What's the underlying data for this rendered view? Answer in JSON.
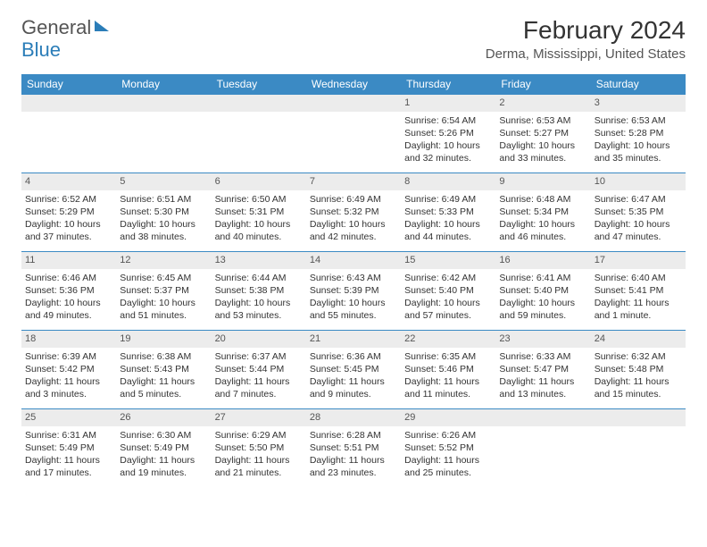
{
  "logo": {
    "part1": "General",
    "part2": "Blue"
  },
  "title": "February 2024",
  "location": "Derma, Mississippi, United States",
  "dow": [
    "Sunday",
    "Monday",
    "Tuesday",
    "Wednesday",
    "Thursday",
    "Friday",
    "Saturday"
  ],
  "colors": {
    "brand_blue": "#3b8ac4",
    "logo_blue": "#2b7db8",
    "text": "#333333",
    "daynum_bg": "#ececec",
    "background": "#ffffff"
  },
  "layout": {
    "type": "calendar",
    "columns": 7,
    "rows": 5,
    "first_weekday_index": 4
  },
  "days": [
    {
      "n": "1",
      "sunrise": "6:54 AM",
      "sunset": "5:26 PM",
      "daylight": "10 hours and 32 minutes."
    },
    {
      "n": "2",
      "sunrise": "6:53 AM",
      "sunset": "5:27 PM",
      "daylight": "10 hours and 33 minutes."
    },
    {
      "n": "3",
      "sunrise": "6:53 AM",
      "sunset": "5:28 PM",
      "daylight": "10 hours and 35 minutes."
    },
    {
      "n": "4",
      "sunrise": "6:52 AM",
      "sunset": "5:29 PM",
      "daylight": "10 hours and 37 minutes."
    },
    {
      "n": "5",
      "sunrise": "6:51 AM",
      "sunset": "5:30 PM",
      "daylight": "10 hours and 38 minutes."
    },
    {
      "n": "6",
      "sunrise": "6:50 AM",
      "sunset": "5:31 PM",
      "daylight": "10 hours and 40 minutes."
    },
    {
      "n": "7",
      "sunrise": "6:49 AM",
      "sunset": "5:32 PM",
      "daylight": "10 hours and 42 minutes."
    },
    {
      "n": "8",
      "sunrise": "6:49 AM",
      "sunset": "5:33 PM",
      "daylight": "10 hours and 44 minutes."
    },
    {
      "n": "9",
      "sunrise": "6:48 AM",
      "sunset": "5:34 PM",
      "daylight": "10 hours and 46 minutes."
    },
    {
      "n": "10",
      "sunrise": "6:47 AM",
      "sunset": "5:35 PM",
      "daylight": "10 hours and 47 minutes."
    },
    {
      "n": "11",
      "sunrise": "6:46 AM",
      "sunset": "5:36 PM",
      "daylight": "10 hours and 49 minutes."
    },
    {
      "n": "12",
      "sunrise": "6:45 AM",
      "sunset": "5:37 PM",
      "daylight": "10 hours and 51 minutes."
    },
    {
      "n": "13",
      "sunrise": "6:44 AM",
      "sunset": "5:38 PM",
      "daylight": "10 hours and 53 minutes."
    },
    {
      "n": "14",
      "sunrise": "6:43 AM",
      "sunset": "5:39 PM",
      "daylight": "10 hours and 55 minutes."
    },
    {
      "n": "15",
      "sunrise": "6:42 AM",
      "sunset": "5:40 PM",
      "daylight": "10 hours and 57 minutes."
    },
    {
      "n": "16",
      "sunrise": "6:41 AM",
      "sunset": "5:40 PM",
      "daylight": "10 hours and 59 minutes."
    },
    {
      "n": "17",
      "sunrise": "6:40 AM",
      "sunset": "5:41 PM",
      "daylight": "11 hours and 1 minute."
    },
    {
      "n": "18",
      "sunrise": "6:39 AM",
      "sunset": "5:42 PM",
      "daylight": "11 hours and 3 minutes."
    },
    {
      "n": "19",
      "sunrise": "6:38 AM",
      "sunset": "5:43 PM",
      "daylight": "11 hours and 5 minutes."
    },
    {
      "n": "20",
      "sunrise": "6:37 AM",
      "sunset": "5:44 PM",
      "daylight": "11 hours and 7 minutes."
    },
    {
      "n": "21",
      "sunrise": "6:36 AM",
      "sunset": "5:45 PM",
      "daylight": "11 hours and 9 minutes."
    },
    {
      "n": "22",
      "sunrise": "6:35 AM",
      "sunset": "5:46 PM",
      "daylight": "11 hours and 11 minutes."
    },
    {
      "n": "23",
      "sunrise": "6:33 AM",
      "sunset": "5:47 PM",
      "daylight": "11 hours and 13 minutes."
    },
    {
      "n": "24",
      "sunrise": "6:32 AM",
      "sunset": "5:48 PM",
      "daylight": "11 hours and 15 minutes."
    },
    {
      "n": "25",
      "sunrise": "6:31 AM",
      "sunset": "5:49 PM",
      "daylight": "11 hours and 17 minutes."
    },
    {
      "n": "26",
      "sunrise": "6:30 AM",
      "sunset": "5:49 PM",
      "daylight": "11 hours and 19 minutes."
    },
    {
      "n": "27",
      "sunrise": "6:29 AM",
      "sunset": "5:50 PM",
      "daylight": "11 hours and 21 minutes."
    },
    {
      "n": "28",
      "sunrise": "6:28 AM",
      "sunset": "5:51 PM",
      "daylight": "11 hours and 23 minutes."
    },
    {
      "n": "29",
      "sunrise": "6:26 AM",
      "sunset": "5:52 PM",
      "daylight": "11 hours and 25 minutes."
    }
  ],
  "labels": {
    "sunrise": "Sunrise:",
    "sunset": "Sunset:",
    "daylight": "Daylight:"
  }
}
